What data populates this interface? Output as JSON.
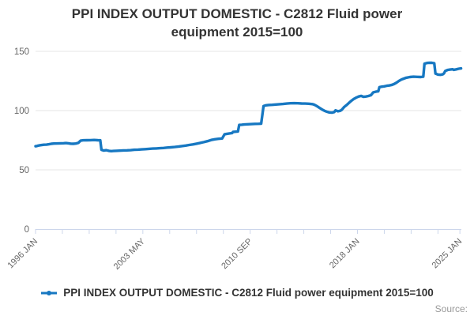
{
  "title": "PPI INDEX OUTPUT DOMESTIC - C2812 Fluid power equipment 2015=100",
  "source_label": "Source:",
  "legend": {
    "label": "PPI INDEX OUTPUT DOMESTIC - C2812 Fluid power equipment 2015=100"
  },
  "colors": {
    "line": "#1778c2",
    "grid": "#e6e6e6",
    "axis": "#ccd6eb",
    "tick_label": "#666666",
    "title_text": "#333333",
    "source_text": "#999999"
  },
  "chart_data": {
    "type": "line",
    "title": "PPI INDEX OUTPUT DOMESTIC - C2812 Fluid power equipment 2015=100",
    "xlabel": "",
    "ylabel": "",
    "ylim": [
      0,
      150
    ],
    "yticks": [
      0,
      50,
      100,
      150
    ],
    "xlim": [
      1996.0,
      2025.1
    ],
    "grid": true,
    "legend_position": "bottom",
    "xticks": [
      {
        "year": 1996.0,
        "label": "1996 JAN"
      },
      {
        "year": 1997.8333,
        "label": ""
      },
      {
        "year": 1999.6667,
        "label": ""
      },
      {
        "year": 2001.5,
        "label": ""
      },
      {
        "year": 2003.3333,
        "label": "2003 MAY"
      },
      {
        "year": 2005.1667,
        "label": ""
      },
      {
        "year": 2007.0,
        "label": ""
      },
      {
        "year": 2008.8333,
        "label": ""
      },
      {
        "year": 2010.6667,
        "label": "2010 SEP"
      },
      {
        "year": 2012.5,
        "label": ""
      },
      {
        "year": 2014.3333,
        "label": ""
      },
      {
        "year": 2016.1667,
        "label": ""
      },
      {
        "year": 2018.0,
        "label": "2018 JAN"
      },
      {
        "year": 2019.8333,
        "label": ""
      },
      {
        "year": 2021.6667,
        "label": ""
      },
      {
        "year": 2023.5,
        "label": ""
      },
      {
        "year": 2025.0,
        "label": "2025 JAN"
      }
    ],
    "series": [
      {
        "name": "PPI INDEX OUTPUT DOMESTIC - C2812 Fluid power equipment 2015=100",
        "points": [
          [
            1996.0,
            69.9
          ],
          [
            1996.08,
            70.1
          ],
          [
            1996.17,
            70.4
          ],
          [
            1996.25,
            70.6
          ],
          [
            1996.42,
            70.9
          ],
          [
            1996.58,
            71.2
          ],
          [
            1996.75,
            71.3
          ],
          [
            1996.92,
            71.6
          ],
          [
            1997.08,
            72.0
          ],
          [
            1997.25,
            72.2
          ],
          [
            1997.5,
            72.3
          ],
          [
            1997.75,
            72.4
          ],
          [
            1997.92,
            72.5
          ],
          [
            1998.08,
            72.6
          ],
          [
            1998.25,
            72.4
          ],
          [
            1998.42,
            72.1
          ],
          [
            1998.58,
            72.0
          ],
          [
            1998.75,
            72.2
          ],
          [
            1998.92,
            72.7
          ],
          [
            1999.08,
            74.6
          ],
          [
            1999.25,
            74.9
          ],
          [
            1999.5,
            75.0
          ],
          [
            1999.75,
            75.1
          ],
          [
            2000.0,
            75.2
          ],
          [
            2000.25,
            75.0
          ],
          [
            2000.42,
            74.9
          ],
          [
            2000.5,
            66.9
          ],
          [
            2000.67,
            66.3
          ],
          [
            2000.83,
            66.6
          ],
          [
            2001.0,
            66.1
          ],
          [
            2001.17,
            65.8
          ],
          [
            2001.33,
            65.9
          ],
          [
            2001.5,
            66.1
          ],
          [
            2001.75,
            66.2
          ],
          [
            2002.0,
            66.4
          ],
          [
            2002.25,
            66.5
          ],
          [
            2002.5,
            66.6
          ],
          [
            2002.75,
            66.9
          ],
          [
            2003.0,
            67.1
          ],
          [
            2003.25,
            67.3
          ],
          [
            2003.5,
            67.5
          ],
          [
            2003.75,
            67.7
          ],
          [
            2004.0,
            67.9
          ],
          [
            2004.25,
            68.1
          ],
          [
            2004.5,
            68.3
          ],
          [
            2004.75,
            68.5
          ],
          [
            2005.0,
            68.8
          ],
          [
            2005.25,
            69.0
          ],
          [
            2005.5,
            69.3
          ],
          [
            2005.75,
            69.6
          ],
          [
            2006.0,
            70.1
          ],
          [
            2006.25,
            70.5
          ],
          [
            2006.5,
            71.0
          ],
          [
            2006.75,
            71.5
          ],
          [
            2007.0,
            72.1
          ],
          [
            2007.25,
            72.7
          ],
          [
            2007.5,
            73.4
          ],
          [
            2007.75,
            74.2
          ],
          [
            2008.0,
            75.2
          ],
          [
            2008.25,
            75.8
          ],
          [
            2008.5,
            76.2
          ],
          [
            2008.75,
            76.5
          ],
          [
            2008.92,
            80.1
          ],
          [
            2009.08,
            80.4
          ],
          [
            2009.25,
            80.7
          ],
          [
            2009.42,
            81.0
          ],
          [
            2009.5,
            82.0
          ],
          [
            2009.67,
            82.2
          ],
          [
            2009.83,
            82.4
          ],
          [
            2009.92,
            87.9
          ],
          [
            2010.08,
            88.1
          ],
          [
            2010.25,
            88.3
          ],
          [
            2010.5,
            88.5
          ],
          [
            2010.75,
            88.6
          ],
          [
            2011.0,
            88.8
          ],
          [
            2011.25,
            88.9
          ],
          [
            2011.42,
            89.0
          ],
          [
            2011.58,
            103.9
          ],
          [
            2011.75,
            104.5
          ],
          [
            2011.92,
            104.7
          ],
          [
            2012.17,
            104.9
          ],
          [
            2012.42,
            105.1
          ],
          [
            2012.67,
            105.4
          ],
          [
            2012.92,
            105.6
          ],
          [
            2013.17,
            105.9
          ],
          [
            2013.42,
            106.2
          ],
          [
            2013.67,
            106.3
          ],
          [
            2013.92,
            106.2
          ],
          [
            2014.17,
            106.0
          ],
          [
            2014.42,
            105.9
          ],
          [
            2014.67,
            105.8
          ],
          [
            2014.92,
            105.5
          ],
          [
            2015.08,
            104.8
          ],
          [
            2015.25,
            103.6
          ],
          [
            2015.42,
            102.2
          ],
          [
            2015.58,
            100.9
          ],
          [
            2015.75,
            99.8
          ],
          [
            2015.92,
            99.0
          ],
          [
            2016.08,
            98.5
          ],
          [
            2016.25,
            98.3
          ],
          [
            2016.42,
            98.8
          ],
          [
            2016.5,
            100.2
          ],
          [
            2016.67,
            99.4
          ],
          [
            2016.83,
            99.9
          ],
          [
            2016.92,
            100.6
          ],
          [
            2017.08,
            102.9
          ],
          [
            2017.25,
            104.6
          ],
          [
            2017.42,
            106.5
          ],
          [
            2017.58,
            108.3
          ],
          [
            2017.75,
            109.9
          ],
          [
            2017.92,
            111.0
          ],
          [
            2018.08,
            111.9
          ],
          [
            2018.25,
            112.4
          ],
          [
            2018.42,
            111.6
          ],
          [
            2018.58,
            111.9
          ],
          [
            2018.75,
            112.3
          ],
          [
            2018.92,
            113.0
          ],
          [
            2019.08,
            115.4
          ],
          [
            2019.25,
            115.9
          ],
          [
            2019.42,
            116.3
          ],
          [
            2019.5,
            119.8
          ],
          [
            2019.67,
            120.2
          ],
          [
            2019.83,
            120.5
          ],
          [
            2020.0,
            120.9
          ],
          [
            2020.17,
            121.2
          ],
          [
            2020.33,
            121.6
          ],
          [
            2020.5,
            122.4
          ],
          [
            2020.67,
            123.6
          ],
          [
            2020.83,
            125.0
          ],
          [
            2021.0,
            126.2
          ],
          [
            2021.17,
            127.0
          ],
          [
            2021.33,
            127.7
          ],
          [
            2021.58,
            128.3
          ],
          [
            2021.83,
            128.6
          ],
          [
            2022.08,
            128.5
          ],
          [
            2022.33,
            128.3
          ],
          [
            2022.5,
            128.6
          ],
          [
            2022.58,
            139.6
          ],
          [
            2022.75,
            140.2
          ],
          [
            2022.92,
            140.4
          ],
          [
            2023.08,
            140.3
          ],
          [
            2023.25,
            140.0
          ],
          [
            2023.33,
            131.2
          ],
          [
            2023.5,
            130.4
          ],
          [
            2023.67,
            130.2
          ],
          [
            2023.83,
            130.6
          ],
          [
            2023.92,
            131.5
          ],
          [
            2024.0,
            133.5
          ],
          [
            2024.17,
            134.3
          ],
          [
            2024.33,
            134.6
          ],
          [
            2024.5,
            134.9
          ],
          [
            2024.58,
            134.4
          ],
          [
            2024.75,
            134.8
          ],
          [
            2024.92,
            135.3
          ],
          [
            2025.08,
            135.6
          ]
        ]
      }
    ]
  }
}
